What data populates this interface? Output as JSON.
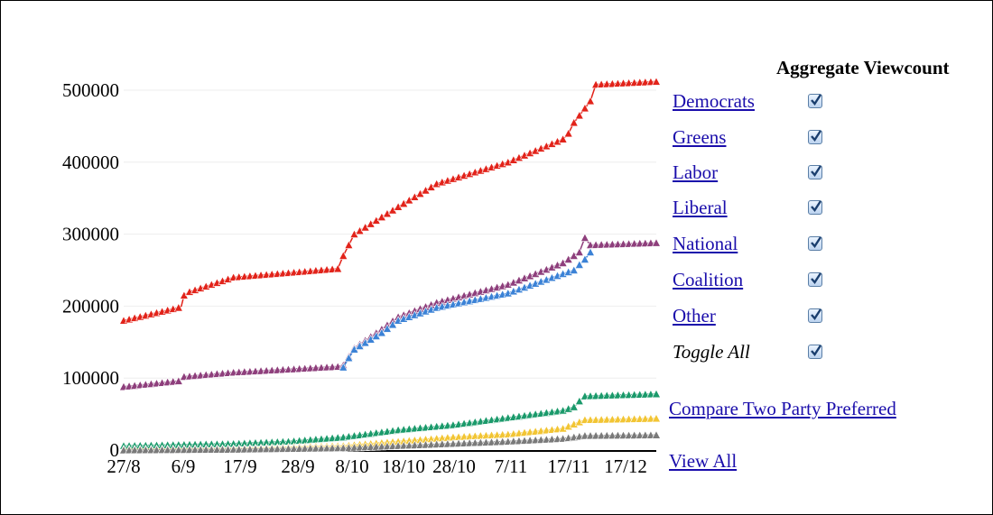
{
  "legend": {
    "title": "Aggregate Viewcount",
    "parties": [
      {
        "label": "Democrats",
        "checked": true
      },
      {
        "label": "Greens",
        "checked": true
      },
      {
        "label": "Labor",
        "checked": true
      },
      {
        "label": "Liberal",
        "checked": true
      },
      {
        "label": "National",
        "checked": true
      },
      {
        "label": "Coalition",
        "checked": true
      },
      {
        "label": "Other",
        "checked": true
      }
    ],
    "toggle_all": {
      "label": "Toggle All",
      "checked": true
    }
  },
  "links": {
    "compare": "Compare Two Party Preferred",
    "view_all": "View All"
  },
  "chart_data": {
    "type": "line",
    "marker": "triangle",
    "title": "",
    "xlabel": "",
    "ylabel": "",
    "ylim": [
      0,
      500000
    ],
    "yticks": [
      0,
      100000,
      200000,
      300000,
      400000,
      500000
    ],
    "xticks": [
      "27/8",
      "6/9",
      "17/9",
      "28/9",
      "8/10",
      "18/10",
      "28/10",
      "7/11",
      "17/11",
      "17/12"
    ],
    "grid": "horizontal",
    "series": [
      {
        "color": "#e2231a",
        "points": [
          [
            0,
            180000
          ],
          [
            10,
            198000
          ],
          [
            10.5,
            200000
          ],
          [
            11,
            215000
          ],
          [
            12,
            220000
          ],
          [
            20,
            240000
          ],
          [
            39,
            252000
          ],
          [
            40,
            270000
          ],
          [
            41,
            285000
          ],
          [
            42,
            300000
          ],
          [
            50,
            338000
          ],
          [
            57,
            370000
          ],
          [
            70,
            400000
          ],
          [
            80,
            432000
          ],
          [
            81,
            440000
          ],
          [
            82,
            455000
          ],
          [
            84,
            475000
          ],
          [
            85,
            485000
          ],
          [
            86,
            508000
          ],
          [
            97,
            512000
          ]
        ]
      },
      {
        "color": "#8e3f7c",
        "points": [
          [
            0,
            88000
          ],
          [
            10,
            96000
          ],
          [
            11,
            102000
          ],
          [
            20,
            108000
          ],
          [
            39,
            116000
          ],
          [
            40,
            118000
          ],
          [
            41,
            130000
          ],
          [
            42,
            142000
          ],
          [
            47,
            168000
          ],
          [
            50,
            185000
          ],
          [
            57,
            205000
          ],
          [
            70,
            230000
          ],
          [
            80,
            260000
          ],
          [
            83,
            275000
          ],
          [
            84,
            295000
          ],
          [
            85,
            285000
          ],
          [
            97,
            288000
          ]
        ]
      },
      {
        "color": "#3b82d6",
        "points": [
          [
            40,
            115000
          ],
          [
            41,
            128000
          ],
          [
            42,
            140000
          ],
          [
            47,
            163000
          ],
          [
            50,
            180000
          ],
          [
            57,
            198000
          ],
          [
            70,
            218000
          ],
          [
            80,
            245000
          ],
          [
            82,
            250000
          ],
          [
            84,
            265000
          ],
          [
            85,
            275000
          ]
        ]
      },
      {
        "color": "#1b9a6b",
        "points": [
          [
            0,
            6000
          ],
          [
            20,
            9000
          ],
          [
            30,
            12000
          ],
          [
            40,
            18000
          ],
          [
            50,
            28000
          ],
          [
            60,
            35000
          ],
          [
            70,
            45000
          ],
          [
            80,
            55000
          ],
          [
            82,
            60000
          ],
          [
            83,
            68000
          ],
          [
            84,
            75000
          ],
          [
            97,
            78000
          ]
        ]
      },
      {
        "color": "#f2c534",
        "points": [
          [
            0,
            1000
          ],
          [
            20,
            2000
          ],
          [
            40,
            6000
          ],
          [
            50,
            12000
          ],
          [
            60,
            18000
          ],
          [
            70,
            22000
          ],
          [
            80,
            30000
          ],
          [
            84,
            42000
          ],
          [
            97,
            44000
          ]
        ]
      },
      {
        "color": "#7a7a7a",
        "points": [
          [
            0,
            0
          ],
          [
            20,
            1000
          ],
          [
            40,
            3000
          ],
          [
            50,
            6000
          ],
          [
            60,
            9000
          ],
          [
            70,
            12000
          ],
          [
            80,
            16000
          ],
          [
            84,
            20000
          ],
          [
            97,
            21000
          ]
        ]
      }
    ]
  }
}
